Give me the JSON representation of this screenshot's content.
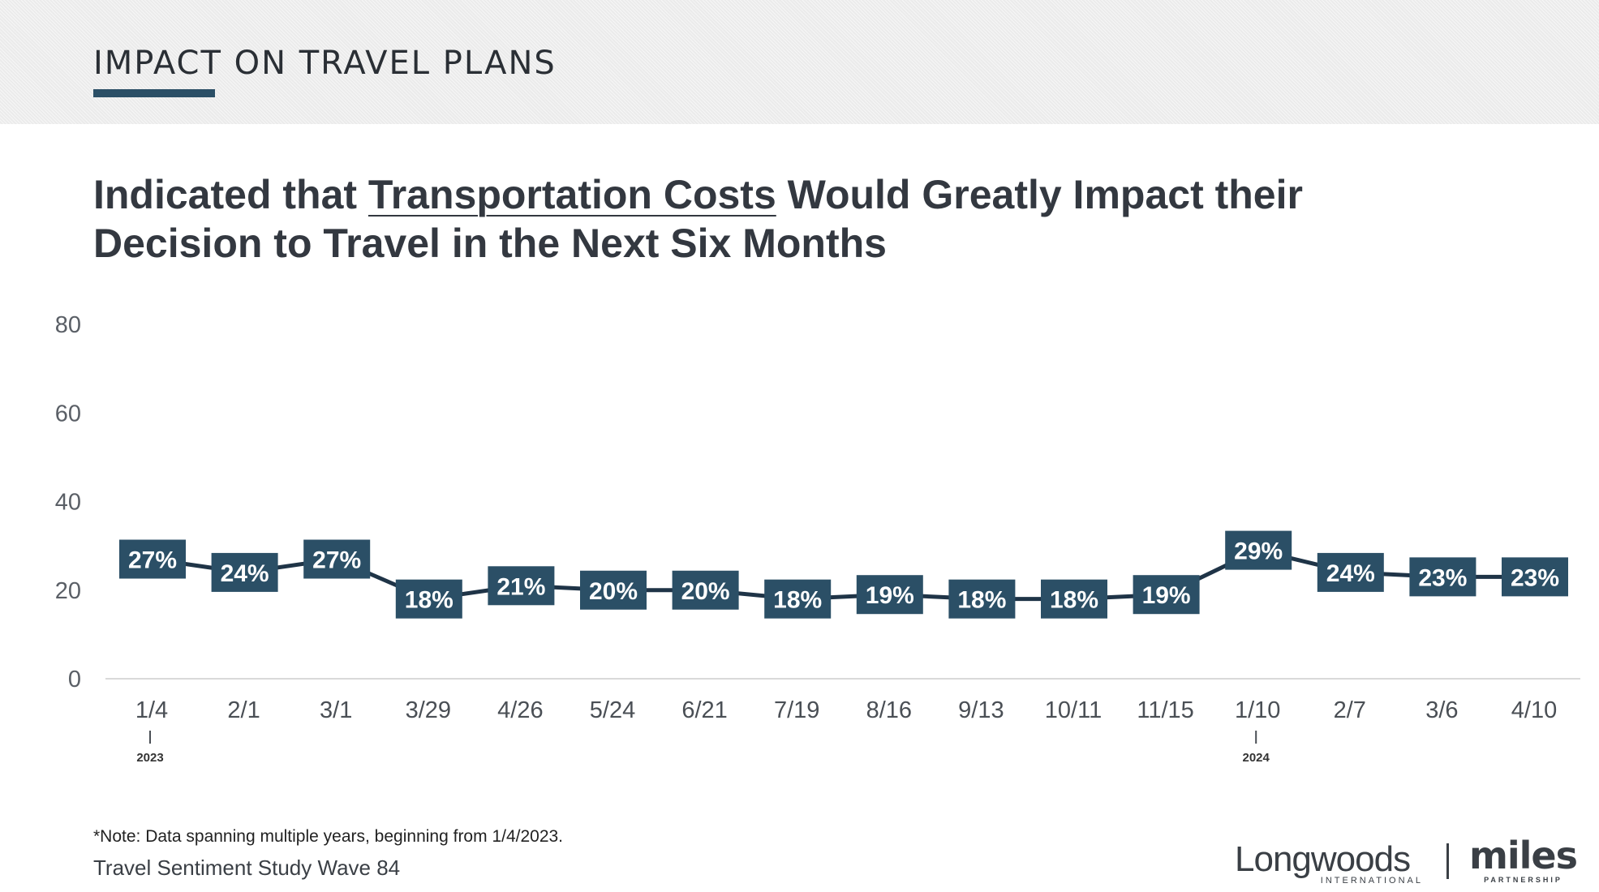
{
  "section_title": "IMPACT ON TRAVEL PLANS",
  "chart_title": {
    "before": "Indicated that ",
    "underlined": "Transportation Costs",
    "after": " Would Greatly Impact their Decision to Travel in the Next Six Months"
  },
  "note": "*Note: Data spanning multiple years, beginning from 1/4/2023.",
  "source": "Travel Sentiment Study Wave 84",
  "logos": {
    "longwoods_name": "Longwoods",
    "longwoods_sub": "INTERNATIONAL",
    "miles_name": "miles",
    "miles_sub": "PARTNERSHIP"
  },
  "colors": {
    "accent": "#2b4f66",
    "line": "#1f3447",
    "label_bg": "#2b4f66",
    "axis_text": "#5a5f66"
  },
  "chart_data": {
    "type": "line",
    "x": [
      "1/4",
      "2/1",
      "3/1",
      "3/29",
      "4/26",
      "5/24",
      "6/21",
      "7/19",
      "8/16",
      "9/13",
      "10/11",
      "11/15",
      "1/10",
      "2/7",
      "3/6",
      "4/10"
    ],
    "series": [
      {
        "values": [
          27,
          24,
          27,
          18,
          21,
          20,
          20,
          18,
          19,
          18,
          18,
          19,
          29,
          24,
          23,
          23
        ]
      }
    ],
    "data_labels": [
      "27%",
      "24%",
      "27%",
      "18%",
      "21%",
      "20%",
      "20%",
      "18%",
      "19%",
      "18%",
      "18%",
      "19%",
      "29%",
      "24%",
      "23%",
      "23%"
    ],
    "y_ticks": [
      "0",
      "20",
      "40",
      "60",
      "80"
    ],
    "ylim": [
      0,
      80
    ],
    "year_markers": [
      {
        "index": 0,
        "label": "2023"
      },
      {
        "index": 12,
        "label": "2024"
      }
    ],
    "grid": false,
    "legend": "none"
  }
}
